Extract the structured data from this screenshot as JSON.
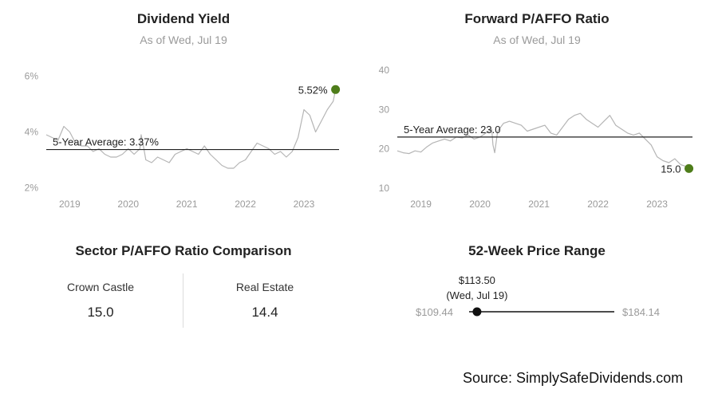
{
  "chart_data": [
    {
      "type": "line",
      "title": "Dividend Yield",
      "subtitle": "As of Wed, Jul 19",
      "y_ticks": [
        "6%",
        "4%",
        "2%"
      ],
      "y_tick_values": [
        6,
        4,
        2
      ],
      "x_ticks": [
        "2019",
        "2020",
        "2021",
        "2022",
        "2023"
      ],
      "ylim": [
        1.7,
        6.5
      ],
      "xlim": [
        2018.6,
        2023.6
      ],
      "average": {
        "label": "5-Year Average: 3.37%",
        "value": 3.37
      },
      "current": {
        "label": "5.52%",
        "x": 2023.54,
        "value": 5.52
      },
      "series": [
        {
          "x": [
            2018.6,
            2018.7,
            2018.8,
            2018.9,
            2019.0,
            2019.1,
            2019.2,
            2019.3,
            2019.4,
            2019.5,
            2019.6,
            2019.7,
            2019.8,
            2019.9,
            2020.0,
            2020.1,
            2020.2,
            2020.22,
            2020.25,
            2020.3,
            2020.4,
            2020.5,
            2020.6,
            2020.7,
            2020.8,
            2020.9,
            2021.0,
            2021.1,
            2021.2,
            2021.3,
            2021.4,
            2021.5,
            2021.6,
            2021.7,
            2021.8,
            2021.9,
            2022.0,
            2022.1,
            2022.2,
            2022.3,
            2022.4,
            2022.5,
            2022.6,
            2022.7,
            2022.8,
            2022.9,
            2023.0,
            2023.1,
            2023.2,
            2023.3,
            2023.4,
            2023.5,
            2023.54
          ],
          "values": [
            3.9,
            3.8,
            3.7,
            4.2,
            4.0,
            3.6,
            3.5,
            3.5,
            3.3,
            3.4,
            3.2,
            3.1,
            3.1,
            3.2,
            3.4,
            3.2,
            3.4,
            3.9,
            3.6,
            3.0,
            2.9,
            3.1,
            3.0,
            2.9,
            3.2,
            3.3,
            3.4,
            3.3,
            3.2,
            3.5,
            3.2,
            3.0,
            2.8,
            2.7,
            2.7,
            2.9,
            3.0,
            3.3,
            3.6,
            3.5,
            3.4,
            3.2,
            3.3,
            3.1,
            3.3,
            3.8,
            4.8,
            4.6,
            4.0,
            4.4,
            4.8,
            5.1,
            5.52
          ]
        }
      ]
    },
    {
      "type": "line",
      "title": "Forward P/AFFO Ratio",
      "subtitle": "As of Wed, Jul 19",
      "y_ticks": [
        "40",
        "30",
        "20",
        "10"
      ],
      "y_tick_values": [
        40,
        30,
        20,
        10
      ],
      "x_ticks": [
        "2019",
        "2020",
        "2021",
        "2022",
        "2023"
      ],
      "ylim": [
        8,
        42
      ],
      "xlim": [
        2018.6,
        2023.6
      ],
      "average": {
        "label": "5-Year Average: 23.0",
        "value": 23.0
      },
      "current": {
        "label": "15.0",
        "x": 2023.54,
        "value": 15.0
      },
      "series": [
        {
          "x": [
            2018.6,
            2018.7,
            2018.8,
            2018.9,
            2019.0,
            2019.1,
            2019.2,
            2019.3,
            2019.4,
            2019.5,
            2019.6,
            2019.7,
            2019.8,
            2019.9,
            2020.0,
            2020.1,
            2020.2,
            2020.22,
            2020.25,
            2020.3,
            2020.4,
            2020.5,
            2020.6,
            2020.7,
            2020.8,
            2020.9,
            2021.0,
            2021.1,
            2021.2,
            2021.3,
            2021.4,
            2021.5,
            2021.6,
            2021.7,
            2021.8,
            2021.9,
            2022.0,
            2022.1,
            2022.2,
            2022.3,
            2022.4,
            2022.5,
            2022.6,
            2022.7,
            2022.8,
            2022.9,
            2023.0,
            2023.1,
            2023.2,
            2023.3,
            2023.4,
            2023.5,
            2023.54
          ],
          "values": [
            19.5,
            19.0,
            18.8,
            19.5,
            19.2,
            20.5,
            21.5,
            22.0,
            22.5,
            22.0,
            23.0,
            22.8,
            23.5,
            22.5,
            23.0,
            24.0,
            25.0,
            21.0,
            19.0,
            24.5,
            26.5,
            27.0,
            26.5,
            26.0,
            24.5,
            25.0,
            25.5,
            26.0,
            24.0,
            23.5,
            25.5,
            27.5,
            28.5,
            29.0,
            27.5,
            26.5,
            25.5,
            27.0,
            28.5,
            26.0,
            25.0,
            24.0,
            23.5,
            24.0,
            22.5,
            21.0,
            18.0,
            17.0,
            16.5,
            17.5,
            16.0,
            15.5,
            15.0
          ]
        }
      ]
    }
  ],
  "colors": {
    "line": "#b5b5b5",
    "average_line": "#222222",
    "marker": "#4e7d1a",
    "axis_text": "#9a9a9a"
  },
  "sector": {
    "title": "Sector P/AFFO Ratio Comparison",
    "items": [
      {
        "label": "Crown Castle",
        "value": "15.0"
      },
      {
        "label": "Real Estate",
        "value": "14.4"
      }
    ]
  },
  "range": {
    "title": "52-Week Price Range",
    "low": "$109.44",
    "high": "$184.14",
    "low_value": 109.44,
    "high_value": 184.14,
    "current_value": 113.5,
    "current_price": "$113.50",
    "current_date": "(Wed, Jul 19)"
  },
  "source": "Source: SimplySafeDividends.com"
}
